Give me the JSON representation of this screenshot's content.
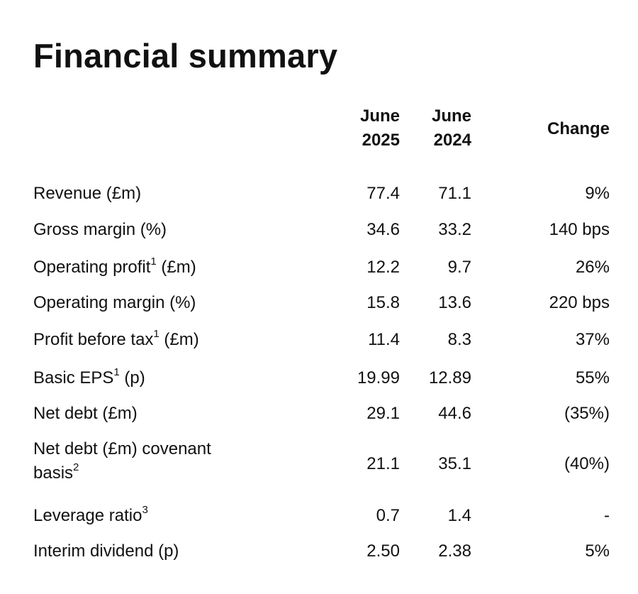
{
  "title": "Financial summary",
  "headers": {
    "col1_line1": "June",
    "col1_line2": "2025",
    "col2_line1": "June",
    "col2_line2": "2024",
    "change": "Change"
  },
  "rows": [
    {
      "label": "Revenue (£m)",
      "y2025": "77.4",
      "y2024": "71.1",
      "change": "9%"
    },
    {
      "label": "Gross margin (%)",
      "y2025": "34.6",
      "y2024": "33.2",
      "change": "140 bps"
    },
    {
      "label_pre": "Operating profit",
      "sup": "1",
      "label_post": " (£m)",
      "y2025": "12.2",
      "y2024": "9.7",
      "change": "26%"
    },
    {
      "label": "Operating margin (%)",
      "y2025": "15.8",
      "y2024": "13.6",
      "change": "220 bps"
    },
    {
      "label_pre": "Profit before tax",
      "sup": "1",
      "label_post": " (£m)",
      "y2025": "11.4",
      "y2024": "8.3",
      "change": "37%"
    },
    {
      "label_pre": "Basic EPS",
      "sup": "1",
      "label_post": " (p)",
      "y2025": "19.99",
      "y2024": "12.89",
      "change": "55%"
    },
    {
      "label": "Net debt (£m)",
      "y2025": "29.1",
      "y2024": "44.6",
      "change": "(35%)"
    },
    {
      "label_line1": "Net debt (£m) covenant",
      "label_line2": "basis",
      "sup": "2",
      "y2025": "21.1",
      "y2024": "35.1",
      "change": "(40%)"
    },
    {
      "label_pre": "Leverage ratio",
      "sup": "3",
      "y2025": "0.7",
      "y2024": "1.4",
      "change": "-"
    },
    {
      "label": "Interim dividend (p)",
      "y2025": "2.50",
      "y2024": "2.38",
      "change": "5%"
    }
  ]
}
